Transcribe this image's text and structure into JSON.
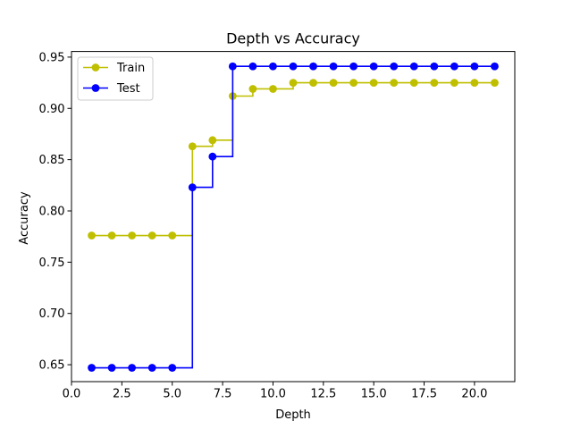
{
  "chart_data": {
    "type": "line",
    "title": "Depth vs Accuracy",
    "xlabel": "Depth",
    "ylabel": "Accuracy",
    "xlim": [
      0,
      22
    ],
    "ylim": [
      0.6335,
      0.9555
    ],
    "xticks": [
      0,
      2.5,
      5,
      7.5,
      10,
      12.5,
      15,
      17.5,
      20
    ],
    "xtick_labels": [
      "0.0",
      "2.5",
      "5.0",
      "7.5",
      "10.0",
      "12.5",
      "15.0",
      "17.5",
      "20.0"
    ],
    "yticks": [
      0.65,
      0.7,
      0.75,
      0.8,
      0.85,
      0.9,
      0.95
    ],
    "ytick_labels": [
      "0.65",
      "0.70",
      "0.75",
      "0.80",
      "0.85",
      "0.90",
      "0.95"
    ],
    "grid": false,
    "legend_position": "top-left",
    "drawstyle": "steps-post",
    "x": [
      1,
      2,
      3,
      4,
      5,
      6,
      7,
      8,
      9,
      10,
      11,
      12,
      13,
      14,
      15,
      16,
      17,
      18,
      19,
      20,
      21
    ],
    "series": [
      {
        "name": "Train",
        "color": "#bfbf00",
        "marker": "circle",
        "values": [
          0.776,
          0.776,
          0.776,
          0.776,
          0.776,
          0.863,
          0.869,
          0.912,
          0.919,
          0.919,
          0.925,
          0.925,
          0.925,
          0.925,
          0.925,
          0.925,
          0.925,
          0.925,
          0.925,
          0.925,
          0.925
        ]
      },
      {
        "name": "Test",
        "color": "#0000ff",
        "marker": "circle",
        "values": [
          0.647,
          0.647,
          0.647,
          0.647,
          0.647,
          0.823,
          0.853,
          0.941,
          0.941,
          0.941,
          0.941,
          0.941,
          0.941,
          0.941,
          0.941,
          0.941,
          0.941,
          0.941,
          0.941,
          0.941,
          0.941
        ]
      }
    ]
  }
}
